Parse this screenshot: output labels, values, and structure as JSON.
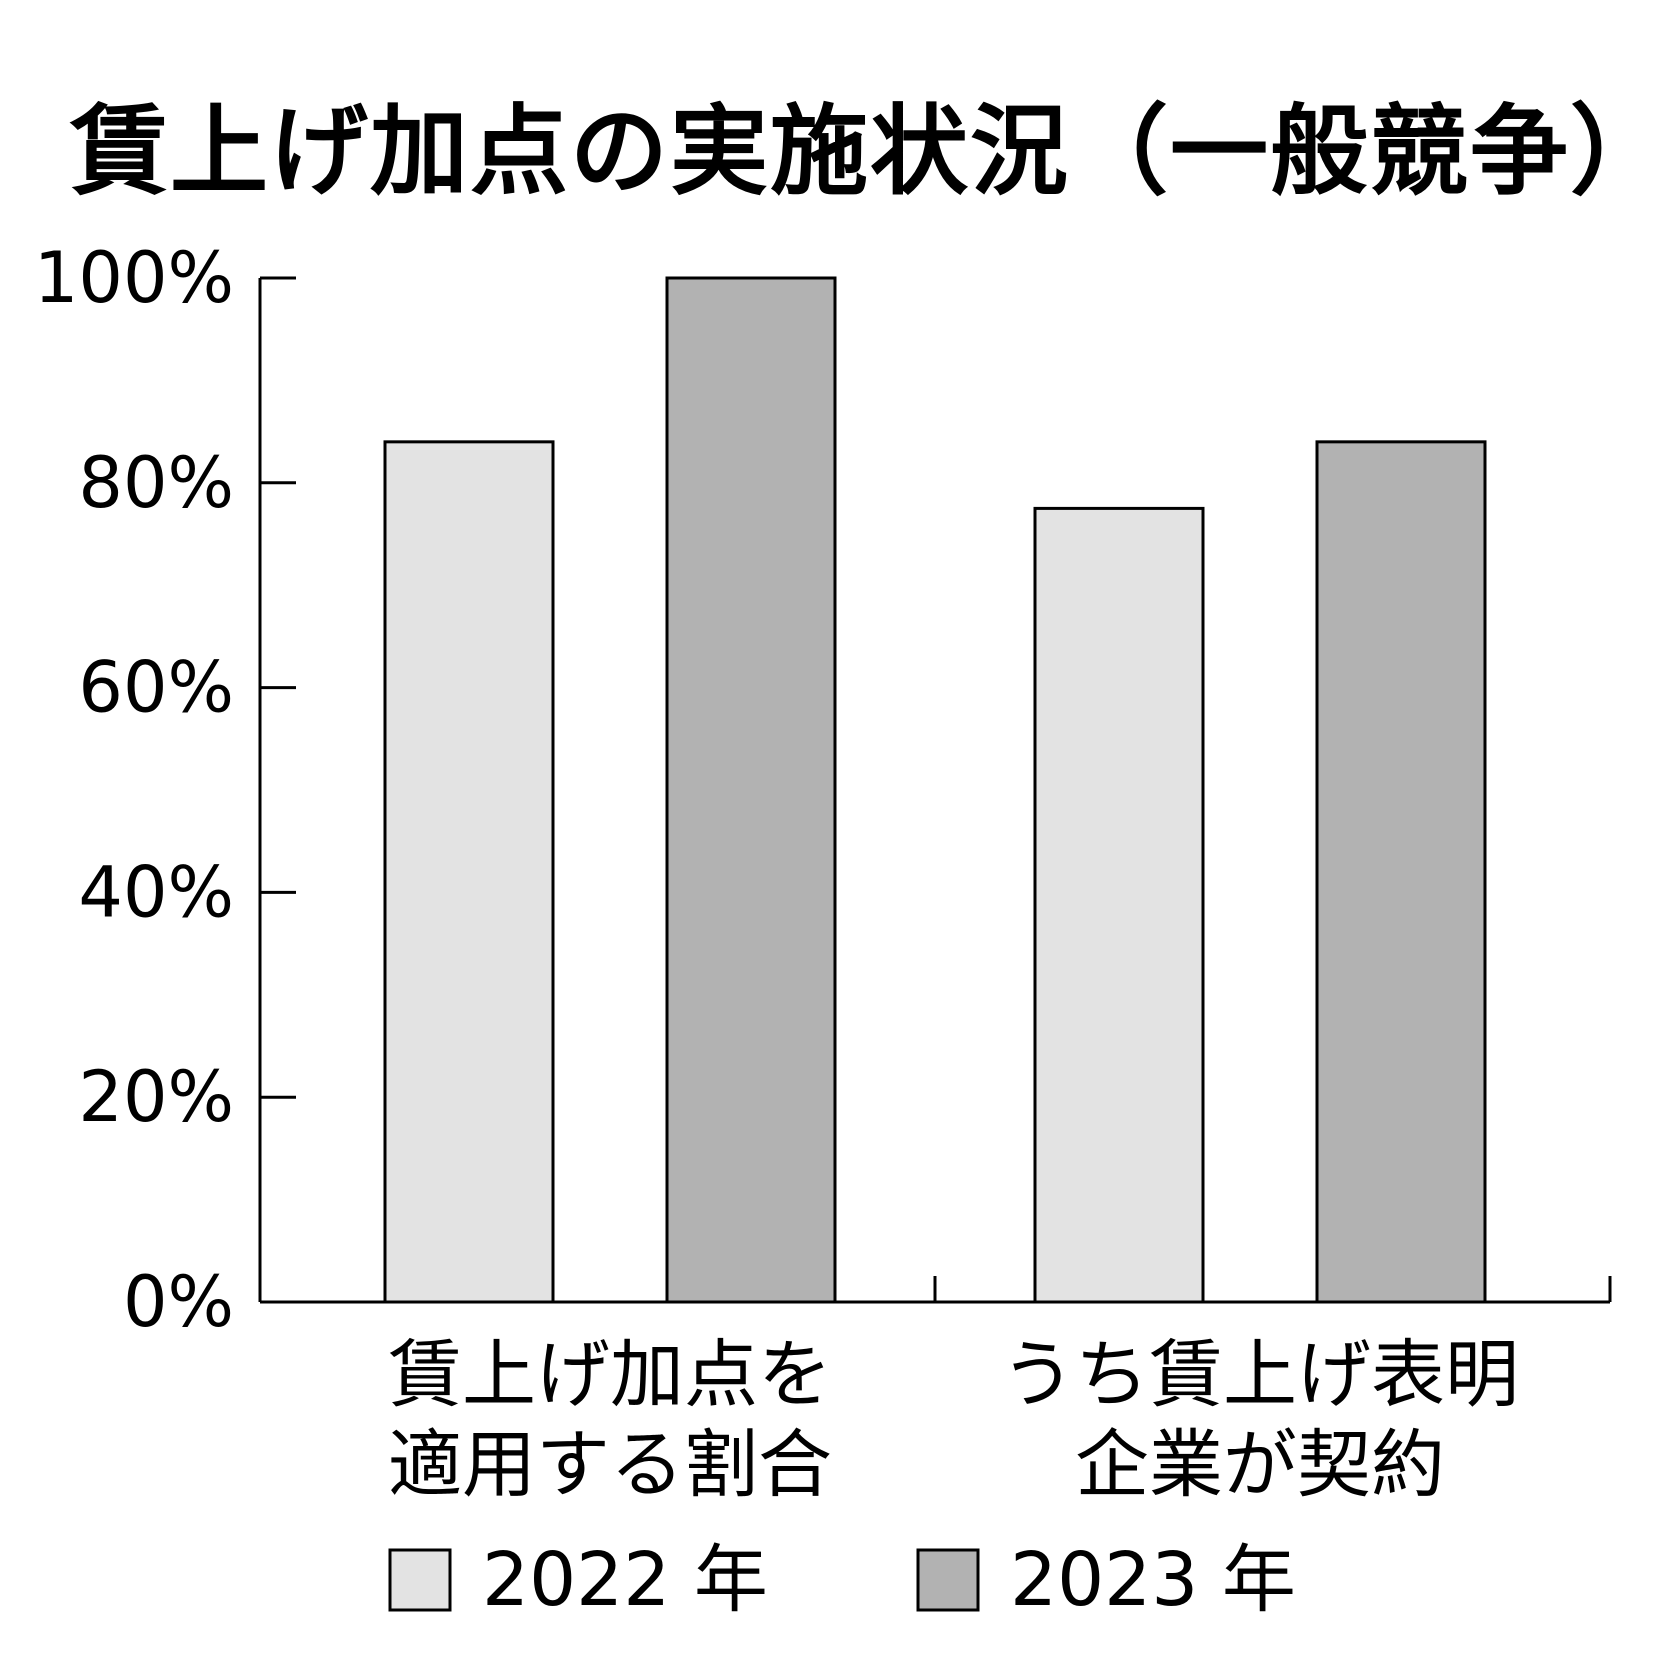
{
  "chart_data": {
    "type": "bar",
    "title": "賃上げ加点の実施状況（一般競争）",
    "categories": [
      [
        "賃上げ加点を",
        "適用する割合"
      ],
      [
        "うち賃上げ表明",
        "企業が契約"
      ]
    ],
    "series": [
      {
        "name": "2022 年",
        "values": [
          84,
          77.5
        ],
        "color": "#e3e3e3"
      },
      {
        "name": "2023 年",
        "values": [
          100,
          84
        ],
        "color": "#b2b2b2"
      }
    ],
    "yticks": [
      "0%",
      "20%",
      "40%",
      "60%",
      "80%",
      "100%"
    ],
    "ytick_values": [
      0,
      20,
      40,
      60,
      80,
      100
    ],
    "ylim": [
      0,
      100
    ],
    "xlabel": "",
    "ylabel": "",
    "legend_position": "bottom",
    "grid": false
  }
}
